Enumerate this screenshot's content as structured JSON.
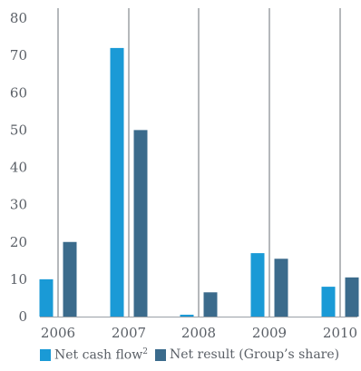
{
  "chart_data": {
    "type": "bar",
    "categories": [
      "2006",
      "2007",
      "2008",
      "2009",
      "2010"
    ],
    "series": [
      {
        "name": "Net cash flow",
        "name_sup": "2",
        "color": "#1a9ad6",
        "values": [
          10,
          72,
          0.5,
          17,
          8
        ]
      },
      {
        "name": "Net result (Group’s share)",
        "color": "#3b6b8c",
        "values": [
          20,
          50,
          6.5,
          15.5,
          10.5
        ]
      }
    ],
    "y_ticks": [
      "0",
      "10",
      "20",
      "30",
      "40",
      "50",
      "60",
      "70",
      "80"
    ],
    "ylim": [
      0,
      80
    ],
    "gridlines": "vertical-per-category",
    "legend": "bottom",
    "title": "",
    "xlabel": "",
    "ylabel": ""
  }
}
